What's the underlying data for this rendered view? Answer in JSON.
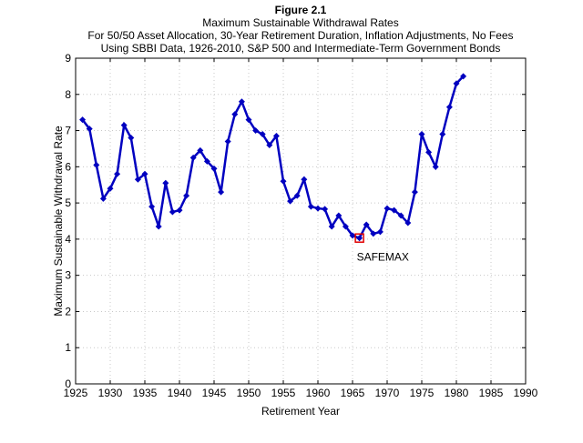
{
  "chart_data": {
    "type": "line",
    "title": "Figure 2.1",
    "subtitle": [
      "Maximum Sustainable Withdrawal Rates",
      "For 50/50 Asset Allocation, 30-Year Retirement Duration, Inflation Adjustments, No Fees",
      "Using SBBI Data, 1926-2010, S&P 500 and Intermediate-Term Government Bonds"
    ],
    "xlabel": "Retirement Year",
    "ylabel": "Maximum Sustainable Withdrawal Rate",
    "xlim": [
      1925,
      1990
    ],
    "ylim": [
      0,
      9
    ],
    "xticks": [
      1925,
      1930,
      1935,
      1940,
      1945,
      1950,
      1955,
      1960,
      1965,
      1970,
      1975,
      1980,
      1985,
      1990
    ],
    "yticks": [
      0,
      1,
      2,
      3,
      4,
      5,
      6,
      7,
      8,
      9
    ],
    "grid": true,
    "line_color": "#0000c0",
    "highlight_color": "#e00000",
    "x": [
      1926,
      1927,
      1928,
      1929,
      1930,
      1931,
      1932,
      1933,
      1934,
      1935,
      1936,
      1937,
      1938,
      1939,
      1940,
      1941,
      1942,
      1943,
      1944,
      1945,
      1946,
      1947,
      1948,
      1949,
      1950,
      1951,
      1952,
      1953,
      1954,
      1955,
      1956,
      1957,
      1958,
      1959,
      1960,
      1961,
      1962,
      1963,
      1964,
      1965,
      1966,
      1967,
      1968,
      1969,
      1970,
      1971,
      1972,
      1973,
      1974,
      1975,
      1976,
      1977,
      1978,
      1979,
      1980,
      1981
    ],
    "y": [
      7.3,
      7.05,
      6.05,
      5.12,
      5.4,
      5.8,
      7.15,
      6.8,
      5.65,
      5.8,
      4.9,
      4.35,
      5.55,
      4.75,
      4.8,
      5.2,
      6.25,
      6.45,
      6.15,
      5.95,
      5.3,
      6.7,
      7.45,
      7.8,
      7.3,
      7.0,
      6.9,
      6.6,
      6.85,
      5.6,
      5.05,
      5.2,
      5.65,
      4.9,
      4.85,
      4.83,
      4.35,
      4.65,
      4.35,
      4.1,
      4.03,
      4.4,
      4.15,
      4.2,
      4.85,
      4.8,
      4.65,
      4.45,
      5.3,
      6.9,
      6.4,
      6.0,
      6.9,
      7.65,
      8.3,
      8.5
    ],
    "annotation": {
      "text": "SAFEMAX",
      "x": 1966,
      "y": 4.03
    }
  }
}
